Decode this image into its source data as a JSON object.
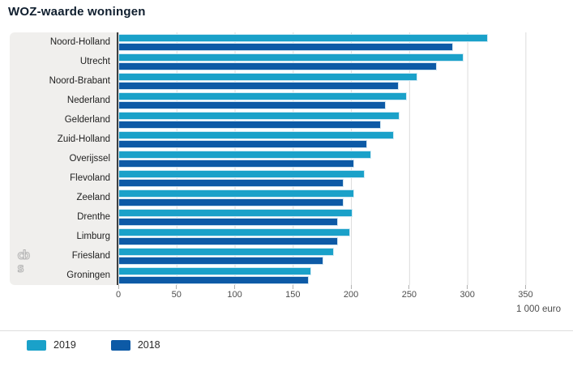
{
  "title": "WOZ-waarde woningen",
  "chart_data": {
    "type": "bar",
    "orientation": "horizontal",
    "title": "WOZ-waarde woningen",
    "categories": [
      "Noord-Holland",
      "Utrecht",
      "Noord-Brabant",
      "Nederland",
      "Gelderland",
      "Zuid-Holland",
      "Overijssel",
      "Flevoland",
      "Zeeland",
      "Drenthe",
      "Limburg",
      "Friesland",
      "Groningen"
    ],
    "series": [
      {
        "name": "2019",
        "color": "#1aa1c9",
        "values": [
          318,
          297,
          257,
          248,
          242,
          237,
          217,
          212,
          203,
          201,
          199,
          185,
          166
        ]
      },
      {
        "name": "2018",
        "color": "#0d5aa6",
        "values": [
          288,
          274,
          241,
          230,
          226,
          214,
          203,
          194,
          194,
          189,
          189,
          176,
          164
        ]
      }
    ],
    "x_ticks": [
      "0",
      "50",
      "100",
      "150",
      "200",
      "250",
      "300",
      "350"
    ],
    "xlim": [
      0,
      350
    ],
    "xlabel_unit": "1 000 euro",
    "grid": "vertical",
    "legend_position": "bottom-left"
  },
  "legend": [
    {
      "label": "2019",
      "color": "#1aa1c9"
    },
    {
      "label": "2018",
      "color": "#0d5aa6"
    }
  ],
  "logo": {
    "line1": "cb",
    "line2": "s"
  },
  "colors": {
    "series_2019": "#1aa1c9",
    "series_2018": "#0d5aa6",
    "axis_line": "#3f3f3f",
    "gridline": "#dcdcdc",
    "label_panel": "#f0efed",
    "title_text": "#0f1e2e",
    "tick_text": "#4d4d4d",
    "logo_gray": "#b3b3b3"
  }
}
